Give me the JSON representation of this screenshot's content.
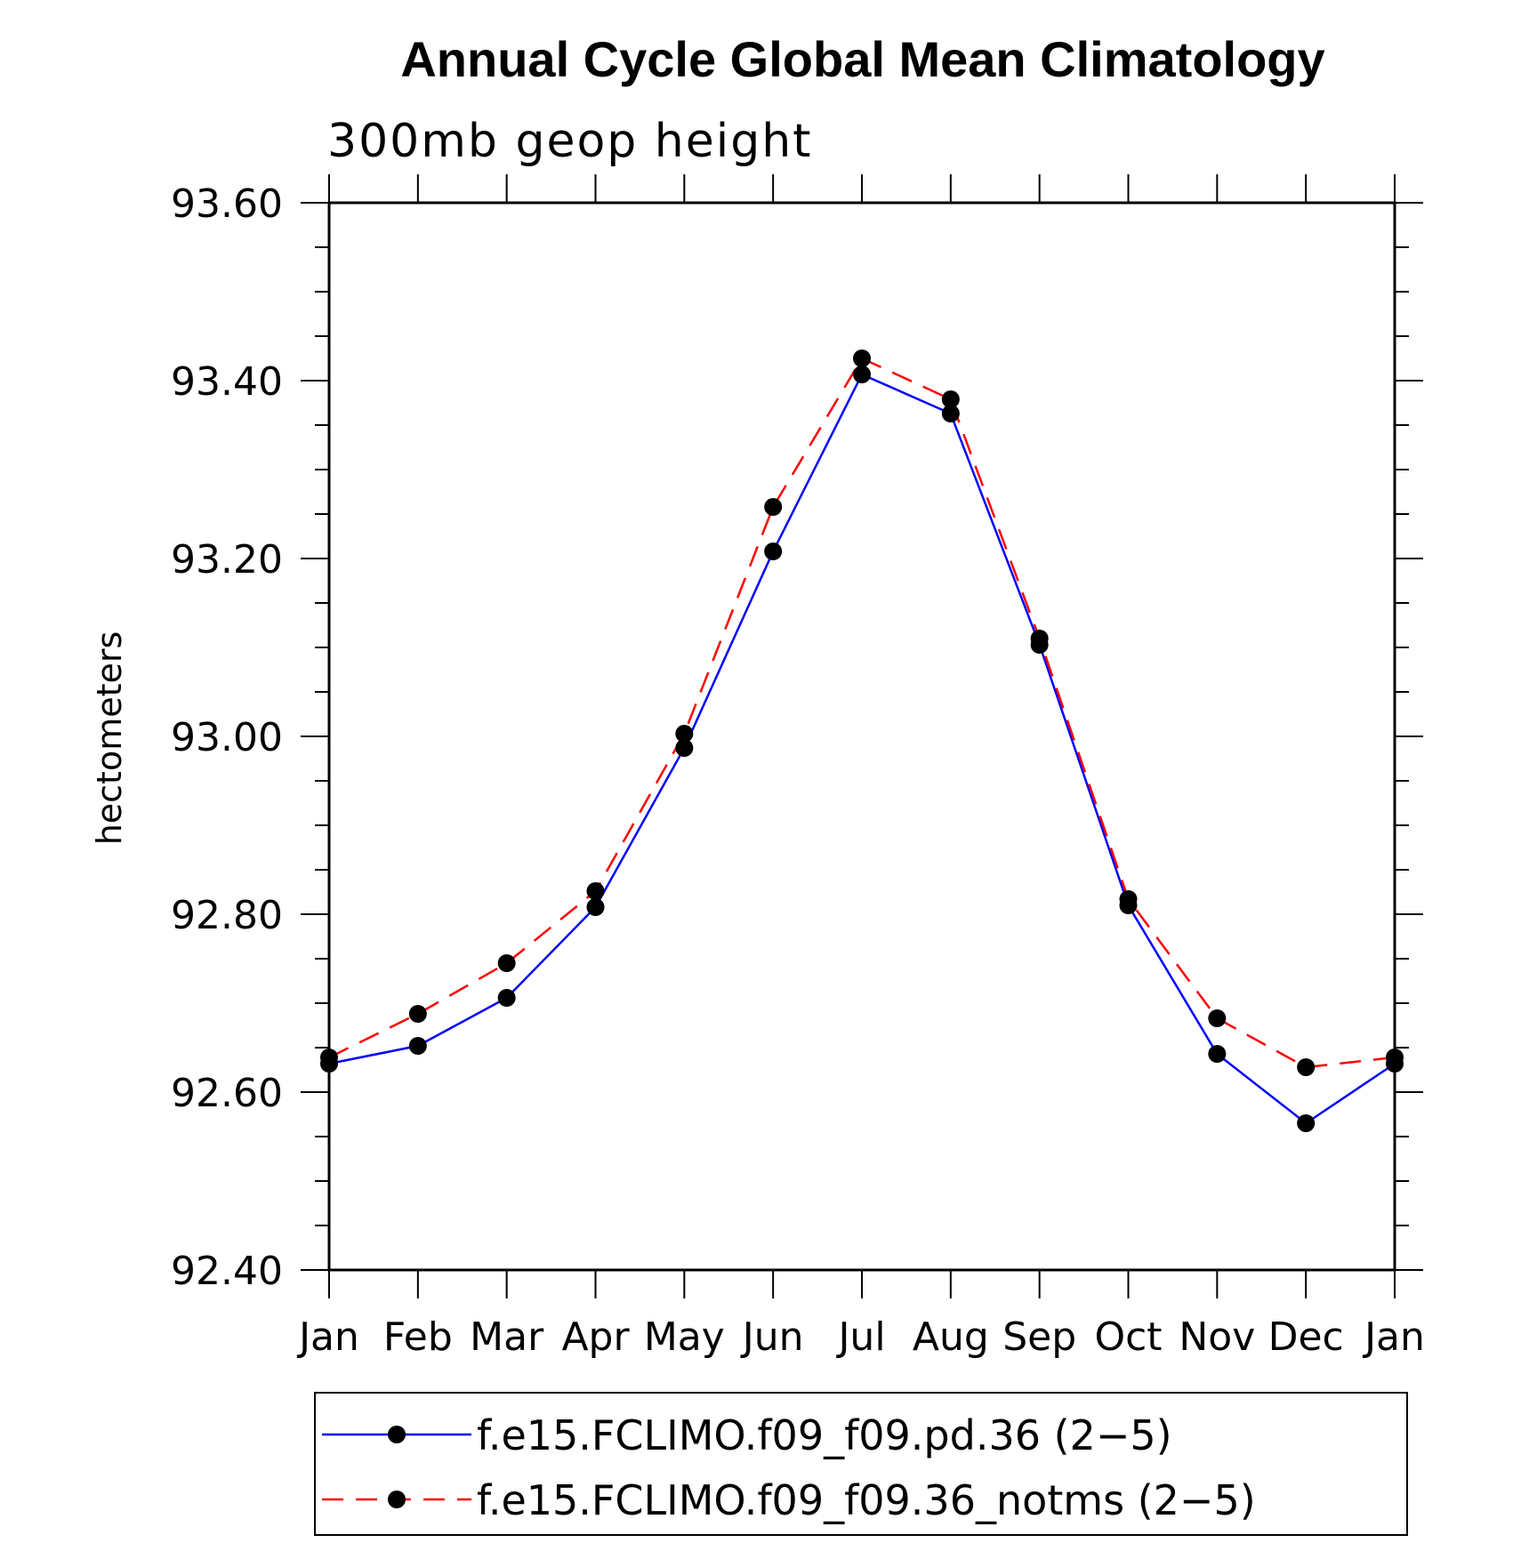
{
  "chart_data": {
    "type": "line",
    "title": "Annual Cycle Global Mean Climatology",
    "subtitle": "300mb geop height",
    "xlabel": "",
    "ylabel": "hectometers",
    "categories": [
      "Jan",
      "Feb",
      "Mar",
      "Apr",
      "May",
      "Jun",
      "Jul",
      "Aug",
      "Sep",
      "Oct",
      "Nov",
      "Dec",
      "Jan"
    ],
    "ylim": [
      92.4,
      93.6
    ],
    "yticks": [
      "93.60",
      "93.40",
      "93.20",
      "93.00",
      "92.80",
      "92.60",
      "92.40"
    ],
    "ytick_values": [
      93.6,
      93.4,
      93.2,
      93.0,
      92.8,
      92.6,
      92.4
    ],
    "legend_position": "bottom",
    "series": [
      {
        "name": "f.e15.FCLIMO.f09_f09.pd.36 (2−5)",
        "color": "#0000ff",
        "style": "solid",
        "values": [
          92.632,
          92.652,
          92.706,
          92.808,
          92.987,
          93.208,
          93.407,
          93.363,
          93.103,
          92.81,
          92.643,
          92.565,
          92.632
        ]
      },
      {
        "name": "f.e15.FCLIMO.f09_f09.36_notms (2−5)",
        "color": "#ff0000",
        "style": "dashed",
        "values": [
          92.639,
          92.688,
          92.745,
          92.826,
          93.003,
          93.258,
          93.425,
          93.379,
          93.11,
          92.817,
          92.683,
          92.628,
          92.639
        ]
      }
    ],
    "marker_color": "#000000"
  }
}
